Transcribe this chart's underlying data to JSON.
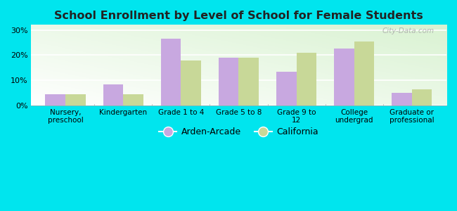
{
  "title": "School Enrollment by Level of School for Female Students",
  "categories": [
    "Nursery,\npreschool",
    "Kindergarten",
    "Grade 1 to 4",
    "Grade 5 to 8",
    "Grade 9 to\n12",
    "College\nundergrad",
    "Graduate or\nprofessional"
  ],
  "arden_arcade": [
    4.5,
    8.5,
    26.5,
    19.0,
    13.5,
    22.5,
    5.0
  ],
  "california": [
    4.5,
    4.5,
    18.0,
    19.0,
    21.0,
    25.5,
    6.5
  ],
  "arden_color": "#c8a8e0",
  "california_color": "#c8d898",
  "background_color": "#00e5ee",
  "ylim": [
    0,
    32
  ],
  "yticks": [
    0,
    10,
    20,
    30
  ],
  "ytick_labels": [
    "0%",
    "10%",
    "20%",
    "30%"
  ],
  "legend_labels": [
    "Arden-Arcade",
    "California"
  ],
  "bar_width": 0.35,
  "watermark": "City-Data.com"
}
